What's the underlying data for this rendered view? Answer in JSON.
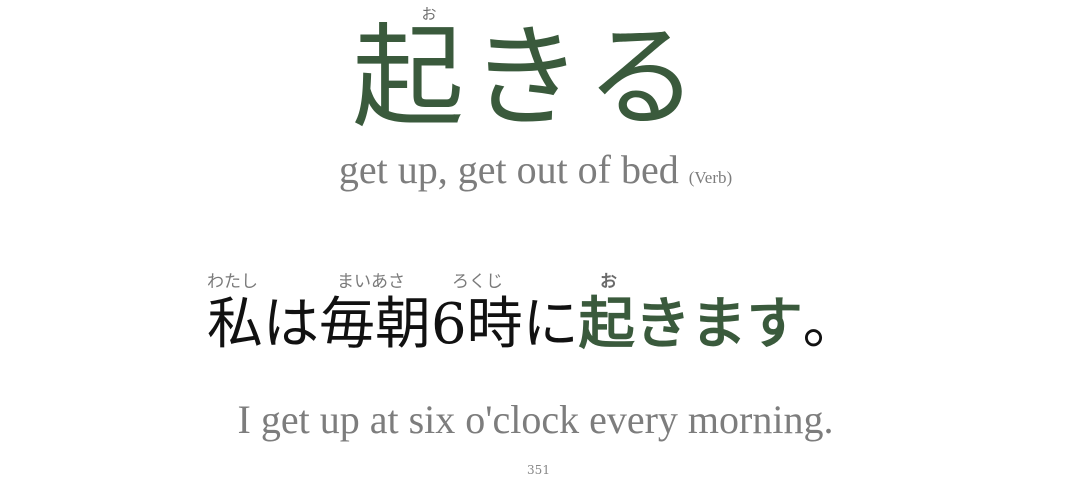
{
  "word": {
    "kanji": "起",
    "kana": "きる",
    "furigana": "お"
  },
  "meaning": {
    "text": "get up, get out of bed",
    "part_of_speech": "(Verb)"
  },
  "example": {
    "segments": [
      {
        "text": "私",
        "furigana": "わたし",
        "highlight": false
      },
      {
        "text": "は",
        "highlight": false
      },
      {
        "text": "毎朝",
        "furigana": "まいあさ",
        "highlight": false
      },
      {
        "text": "6時",
        "furigana": "ろくじ",
        "highlight": false
      },
      {
        "text": "に",
        "highlight": false
      },
      {
        "text": "起",
        "furigana": "お",
        "highlight": true
      },
      {
        "text": "きます",
        "highlight": true
      },
      {
        "text": "。",
        "highlight": false
      }
    ],
    "translation": "I get up at six o'clock every morning."
  },
  "card_number": "351",
  "colors": {
    "highlight": "#3a5a3c",
    "muted": "#7d7d7d",
    "sentence": "#111111",
    "background": "#ffffff"
  }
}
